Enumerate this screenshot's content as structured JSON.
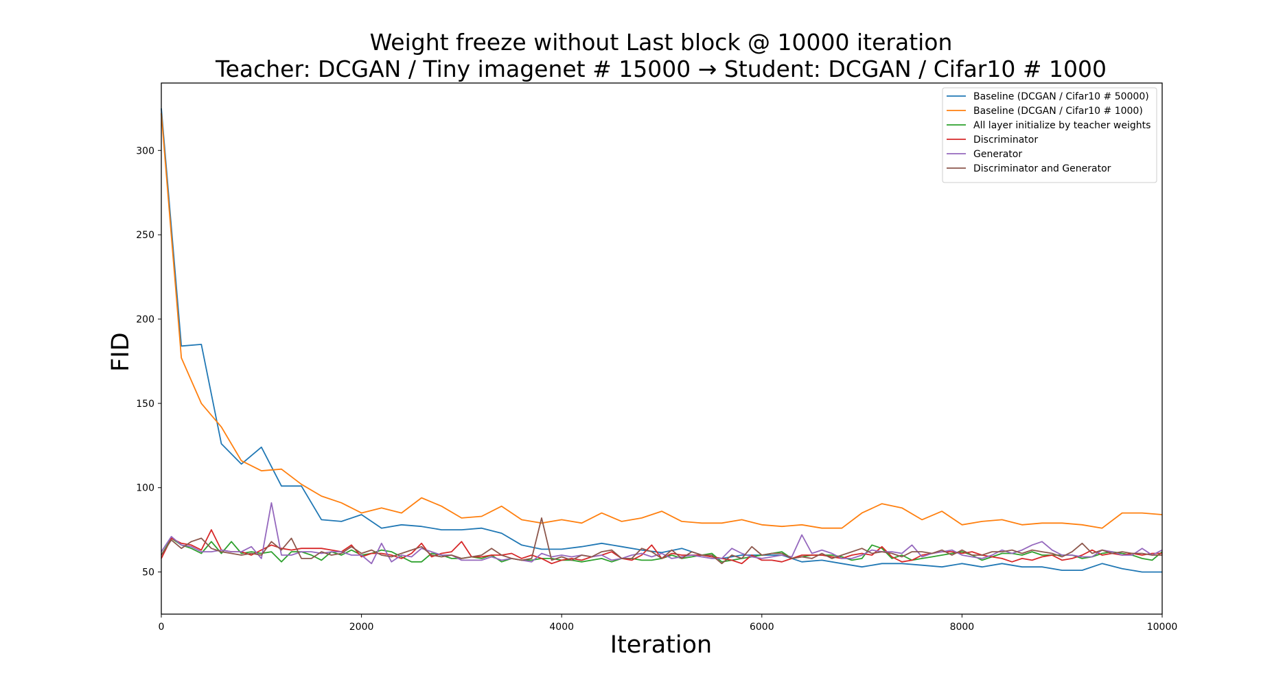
{
  "chart_data": {
    "type": "line",
    "title": "Weight freeze without Last block @ 10000 iteration",
    "subtitle": "Teacher: DCGAN / Tiny imagenet # 15000 → Student: DCGAN / Cifar10 # 1000",
    "xlabel": "Iteration",
    "ylabel": "FID",
    "xlim": [
      0,
      10000
    ],
    "ylim": [
      25,
      340
    ],
    "xticks": [
      0,
      2000,
      4000,
      6000,
      8000,
      10000
    ],
    "yticks": [
      50,
      100,
      150,
      200,
      250,
      300
    ],
    "grid": false,
    "legend_position": "top-right",
    "series": [
      {
        "name": "Baseline (DCGAN  / Cifar10 # 50000)",
        "color": "#1f77b4",
        "x": [
          0,
          200,
          400,
          600,
          800,
          1000,
          1200,
          1400,
          1600,
          1800,
          2000,
          2200,
          2400,
          2600,
          2800,
          3000,
          3200,
          3400,
          3600,
          3800,
          4000,
          4200,
          4400,
          4600,
          4800,
          5000,
          5200,
          5400,
          5600,
          5800,
          6000,
          6200,
          6400,
          6600,
          6800,
          7000,
          7200,
          7400,
          7600,
          7800,
          8000,
          8200,
          8400,
          8600,
          8800,
          9000,
          9200,
          9400,
          9600,
          9800,
          10000
        ],
        "y": [
          325,
          184,
          185,
          126,
          114,
          124,
          101,
          101,
          81,
          80,
          84,
          76,
          78,
          77,
          75,
          75,
          76,
          73,
          66,
          63.5,
          63.5,
          65,
          67,
          65,
          63,
          61.5,
          64,
          60,
          58,
          60,
          60,
          60,
          56,
          57,
          55,
          53,
          55,
          55,
          54,
          53,
          55,
          53,
          55,
          53,
          53,
          51,
          51,
          55,
          52,
          50,
          50
        ]
      },
      {
        "name": "Baseline (DCGAN  / Cifar10 # 1000)",
        "color": "#ff7f0e",
        "x": [
          0,
          200,
          400,
          600,
          800,
          1000,
          1200,
          1400,
          1600,
          1800,
          2000,
          2200,
          2400,
          2600,
          2800,
          3000,
          3200,
          3400,
          3600,
          3800,
          4000,
          4200,
          4400,
          4600,
          4800,
          5000,
          5200,
          5400,
          5600,
          5800,
          6000,
          6200,
          6400,
          6600,
          6800,
          7000,
          7200,
          7400,
          7600,
          7800,
          8000,
          8200,
          8400,
          8600,
          8800,
          9000,
          9200,
          9400,
          9600,
          9800,
          10000
        ],
        "y": [
          322,
          177,
          150,
          136,
          116,
          110,
          111,
          102,
          95,
          91,
          85,
          88,
          85,
          94,
          89,
          82,
          83,
          89,
          81,
          79,
          81,
          79,
          85,
          80,
          82,
          86,
          80,
          79,
          79,
          81,
          78,
          77,
          78,
          76,
          76,
          85,
          90.5,
          88,
          81,
          86,
          78,
          80,
          81,
          78,
          79,
          79,
          78,
          76,
          85,
          85,
          84
        ]
      },
      {
        "name": "All layer initialize by teacher weights",
        "color": "#2ca02c",
        "x": [
          0,
          100,
          200,
          300,
          400,
          500,
          600,
          700,
          800,
          900,
          1000,
          1100,
          1200,
          1300,
          1400,
          1500,
          1600,
          1700,
          1800,
          1900,
          2000,
          2100,
          2200,
          2300,
          2400,
          2500,
          2600,
          2700,
          2800,
          2900,
          3000,
          3100,
          3200,
          3300,
          3400,
          3500,
          3600,
          3700,
          3800,
          3900,
          4000,
          4100,
          4200,
          4300,
          4400,
          4500,
          4600,
          4700,
          4800,
          4900,
          5000,
          5100,
          5200,
          5300,
          5400,
          5500,
          5600,
          5700,
          5800,
          5900,
          6000,
          6100,
          6200,
          6300,
          6400,
          6500,
          6600,
          6700,
          6800,
          6900,
          7000,
          7100,
          7200,
          7300,
          7400,
          7500,
          7600,
          7700,
          7800,
          7900,
          8000,
          8100,
          8200,
          8300,
          8400,
          8500,
          8600,
          8700,
          8800,
          8900,
          9000,
          9100,
          9200,
          9300,
          9400,
          9500,
          9600,
          9700,
          9800,
          9900,
          10000
        ],
        "y": [
          60,
          70,
          66,
          64,
          61,
          68,
          61,
          68,
          61,
          62,
          61,
          62,
          56,
          62,
          62,
          60,
          57,
          62,
          60,
          63,
          60,
          61,
          63,
          62,
          59,
          56,
          56,
          61,
          60,
          58,
          58,
          59,
          58,
          60,
          56,
          58,
          57,
          57,
          58,
          58,
          57,
          57,
          56,
          57,
          58,
          56,
          58,
          58,
          57,
          57,
          58,
          60,
          58,
          59,
          60,
          61,
          56,
          57,
          58,
          59,
          60,
          61,
          62,
          58,
          59,
          60,
          60,
          60,
          59,
          57,
          58,
          66,
          64,
          58,
          60,
          57,
          58,
          59,
          60,
          61,
          62,
          60,
          57,
          59,
          61,
          61,
          60,
          62,
          60,
          60,
          60,
          60,
          58,
          59,
          61,
          62,
          61,
          60,
          58,
          57,
          62
        ]
      },
      {
        "name": "Discriminator",
        "color": "#d62728",
        "x": [
          0,
          100,
          200,
          300,
          400,
          500,
          600,
          700,
          800,
          900,
          1000,
          1100,
          1200,
          1300,
          1400,
          1500,
          1600,
          1700,
          1800,
          1900,
          2000,
          2100,
          2200,
          2300,
          2400,
          2500,
          2600,
          2700,
          2800,
          2900,
          3000,
          3100,
          3200,
          3300,
          3400,
          3500,
          3600,
          3700,
          3800,
          3900,
          4000,
          4100,
          4200,
          4300,
          4400,
          4500,
          4600,
          4700,
          4800,
          4900,
          5000,
          5100,
          5200,
          5300,
          5400,
          5500,
          5600,
          5700,
          5800,
          5900,
          6000,
          6100,
          6200,
          6300,
          6400,
          6500,
          6600,
          6700,
          6800,
          6900,
          7000,
          7100,
          7200,
          7300,
          7400,
          7500,
          7600,
          7700,
          7800,
          7900,
          8000,
          8100,
          8200,
          8300,
          8400,
          8500,
          8600,
          8700,
          8800,
          8900,
          9000,
          9100,
          9200,
          9300,
          9400,
          9500,
          9600,
          9700,
          9800,
          9900,
          10000
        ],
        "y": [
          58,
          70,
          67,
          66,
          63,
          75,
          63,
          62,
          62,
          60,
          63,
          66,
          64,
          63,
          64,
          64,
          64,
          63,
          62,
          66,
          59,
          61,
          61,
          60,
          58,
          61,
          67,
          59,
          61,
          62,
          68,
          59,
          59,
          60,
          60,
          61,
          58,
          60,
          58,
          55,
          57,
          58,
          57,
          59,
          60,
          62,
          58,
          57,
          60,
          66,
          58,
          61,
          60,
          60,
          60,
          59,
          58,
          57,
          55,
          60,
          57,
          57,
          56,
          58,
          60,
          60,
          60,
          59,
          58,
          60,
          61,
          60,
          65,
          59,
          56,
          57,
          60,
          61,
          62,
          62,
          61,
          62,
          60,
          59,
          58,
          56,
          58,
          57,
          59,
          60,
          57,
          58,
          60,
          63,
          60,
          61,
          60,
          61,
          60,
          61,
          61
        ]
      },
      {
        "name": "Generator",
        "color": "#9467bd",
        "x": [
          0,
          100,
          200,
          300,
          400,
          500,
          600,
          700,
          800,
          900,
          1000,
          1100,
          1200,
          1300,
          1400,
          1500,
          1600,
          1700,
          1800,
          1900,
          2000,
          2100,
          2200,
          2300,
          2400,
          2500,
          2600,
          2700,
          2800,
          2900,
          3000,
          3100,
          3200,
          3300,
          3400,
          3500,
          3600,
          3700,
          3800,
          3900,
          4000,
          4100,
          4200,
          4300,
          4400,
          4500,
          4600,
          4700,
          4800,
          4900,
          5000,
          5100,
          5200,
          5300,
          5400,
          5500,
          5600,
          5700,
          5800,
          5900,
          6000,
          6100,
          6200,
          6300,
          6400,
          6500,
          6600,
          6700,
          6800,
          6900,
          7000,
          7100,
          7200,
          7300,
          7400,
          7500,
          7600,
          7700,
          7800,
          7900,
          8000,
          8100,
          8200,
          8300,
          8400,
          8500,
          8600,
          8700,
          8800,
          8900,
          9000,
          9100,
          9200,
          9300,
          9400,
          9500,
          9600,
          9700,
          9800,
          9900,
          10000
        ],
        "y": [
          62,
          71,
          66,
          65,
          62,
          62,
          63,
          62,
          62,
          65,
          58,
          91,
          60,
          60,
          62,
          62,
          61,
          62,
          62,
          60,
          60,
          55,
          67,
          56,
          60,
          59,
          64,
          62,
          60,
          60,
          57,
          57,
          57,
          59,
          57,
          58,
          57,
          56,
          61,
          59,
          60,
          59,
          60,
          59,
          60,
          57,
          58,
          60,
          61,
          59,
          61,
          58,
          59,
          60,
          59,
          58,
          58,
          64,
          61,
          59,
          58,
          59,
          60,
          59,
          72,
          61,
          63,
          61,
          58,
          58,
          60,
          63,
          62,
          62,
          61,
          66,
          59,
          61,
          62,
          63,
          60,
          59,
          58,
          60,
          63,
          61,
          63,
          66,
          68,
          63,
          60,
          60,
          59,
          59,
          63,
          62,
          60,
          60,
          64,
          60,
          63
        ]
      },
      {
        "name": "Discriminator and Generator",
        "color": "#8c564b",
        "x": [
          0,
          100,
          200,
          300,
          400,
          500,
          600,
          700,
          800,
          900,
          1000,
          1100,
          1200,
          1300,
          1400,
          1500,
          1600,
          1700,
          1800,
          1900,
          2000,
          2100,
          2200,
          2300,
          2400,
          2500,
          2600,
          2700,
          2800,
          2900,
          3000,
          3100,
          3200,
          3300,
          3400,
          3500,
          3600,
          3700,
          3800,
          3900,
          4000,
          4100,
          4200,
          4300,
          4400,
          4500,
          4600,
          4700,
          4800,
          4900,
          5000,
          5100,
          5200,
          5300,
          5400,
          5500,
          5600,
          5700,
          5800,
          5900,
          6000,
          6100,
          6200,
          6300,
          6400,
          6500,
          6600,
          6700,
          6800,
          6900,
          7000,
          7100,
          7200,
          7300,
          7400,
          7500,
          7600,
          7700,
          7800,
          7900,
          8000,
          8100,
          8200,
          8300,
          8400,
          8500,
          8600,
          8700,
          8800,
          8900,
          9000,
          9100,
          9200,
          9300,
          9400,
          9500,
          9600,
          9700,
          9800,
          9900,
          10000
        ],
        "y": [
          60,
          69,
          64,
          68,
          70,
          64,
          62,
          61,
          60,
          61,
          60,
          68,
          63,
          70,
          58,
          58,
          62,
          60,
          61,
          65,
          61,
          63,
          60,
          59,
          61,
          63,
          65,
          60,
          59,
          60,
          58,
          59,
          60,
          64,
          60,
          58,
          57,
          58,
          82,
          57,
          59,
          57,
          60,
          59,
          62,
          63,
          58,
          58,
          64,
          62,
          58,
          63,
          58,
          62,
          60,
          60,
          55,
          60,
          58,
          65,
          60,
          61,
          61,
          58,
          59,
          58,
          61,
          58,
          60,
          62,
          64,
          61,
          62,
          61,
          59,
          62,
          62,
          61,
          63,
          60,
          63,
          60,
          60,
          62,
          62,
          63,
          61,
          63,
          62,
          61,
          59,
          62,
          67,
          61,
          63,
          61,
          62,
          61,
          61,
          60,
          60
        ]
      }
    ]
  }
}
